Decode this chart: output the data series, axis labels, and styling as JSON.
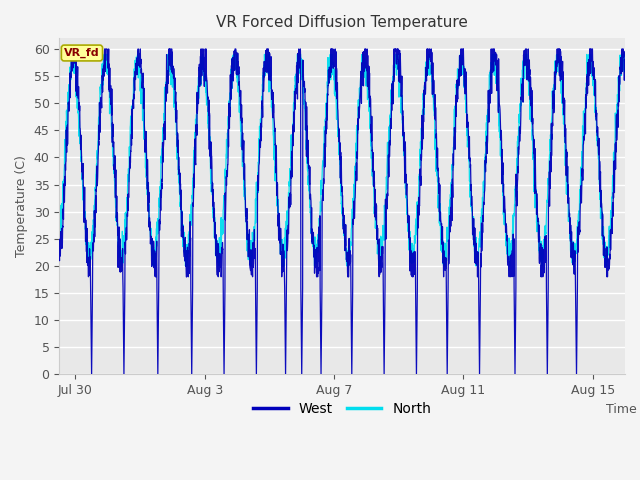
{
  "title": "VR Forced Diffusion Temperature",
  "xlabel": "Time",
  "ylabel": "Temperature (C)",
  "ylim": [
    0,
    62
  ],
  "xlim": [
    0,
    17.5
  ],
  "yticks": [
    0,
    5,
    10,
    15,
    20,
    25,
    30,
    35,
    40,
    45,
    50,
    55,
    60
  ],
  "xtick_positions": [
    0.5,
    4.5,
    8.5,
    12.5,
    16.5
  ],
  "xtick_labels": [
    "Jul 30",
    "Aug 3",
    "Aug 7",
    "Aug 11",
    "Aug 15"
  ],
  "west_color": "#0000BB",
  "north_color": "#00DDEE",
  "fig_bg_color": "#F4F4F4",
  "plot_bg_color": "#E8E8E8",
  "grid_color": "#FFFFFF",
  "annotation_text": "VR_fd",
  "annotation_bg": "#FFFF99",
  "annotation_border": "#AAAA00",
  "annotation_text_color": "#880000",
  "legend_west": "West",
  "legend_north": "North",
  "west_min": 20,
  "west_max": 59,
  "north_min": 22,
  "north_max": 58,
  "total_days": 17.5,
  "cycle_period_days": 1.0,
  "west_spike_days": [
    1.0,
    2.0,
    3.05,
    4.1,
    5.1,
    6.1,
    7.0,
    7.5,
    8.1,
    9.05,
    10.05,
    11.05,
    12.0,
    13.0,
    14.1,
    15.1,
    16.0
  ],
  "seed": 42
}
